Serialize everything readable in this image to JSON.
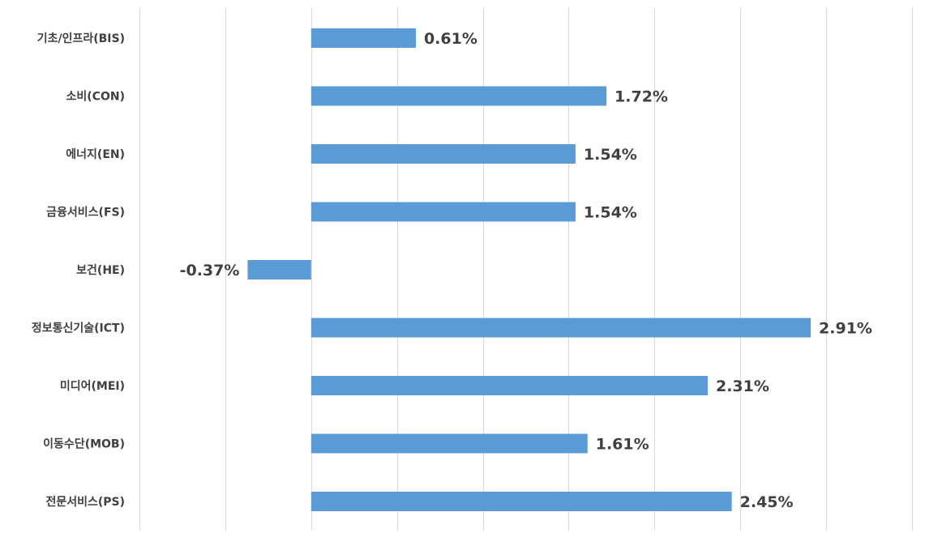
{
  "chart_data": {
    "type": "bar",
    "orientation": "horizontal",
    "categories": [
      "기초/인프라(BIS)",
      "소비(CON)",
      "에너지(EN)",
      "금융서비스(FS)",
      "보건(HE)",
      "정보통신기술(ICT)",
      "미디어(MEI)",
      "이동수단(MOB)",
      "전문서비스(PS)"
    ],
    "values": [
      0.61,
      1.72,
      1.54,
      1.54,
      -0.37,
      2.91,
      2.31,
      1.61,
      2.45
    ],
    "data_labels": [
      "0.61%",
      "1.72%",
      "1.54%",
      "1.54%",
      "-0.37%",
      "2.91%",
      "2.31%",
      "1.61%",
      "2.45%"
    ],
    "xlim": [
      -1.0,
      3.5
    ],
    "x_gridline_step": 0.5,
    "grid": true,
    "title": "",
    "xlabel": "",
    "ylabel": "",
    "colors": {
      "bar": "#5B9BD5",
      "grid": "#D9D9D9",
      "text": "#404040"
    }
  }
}
